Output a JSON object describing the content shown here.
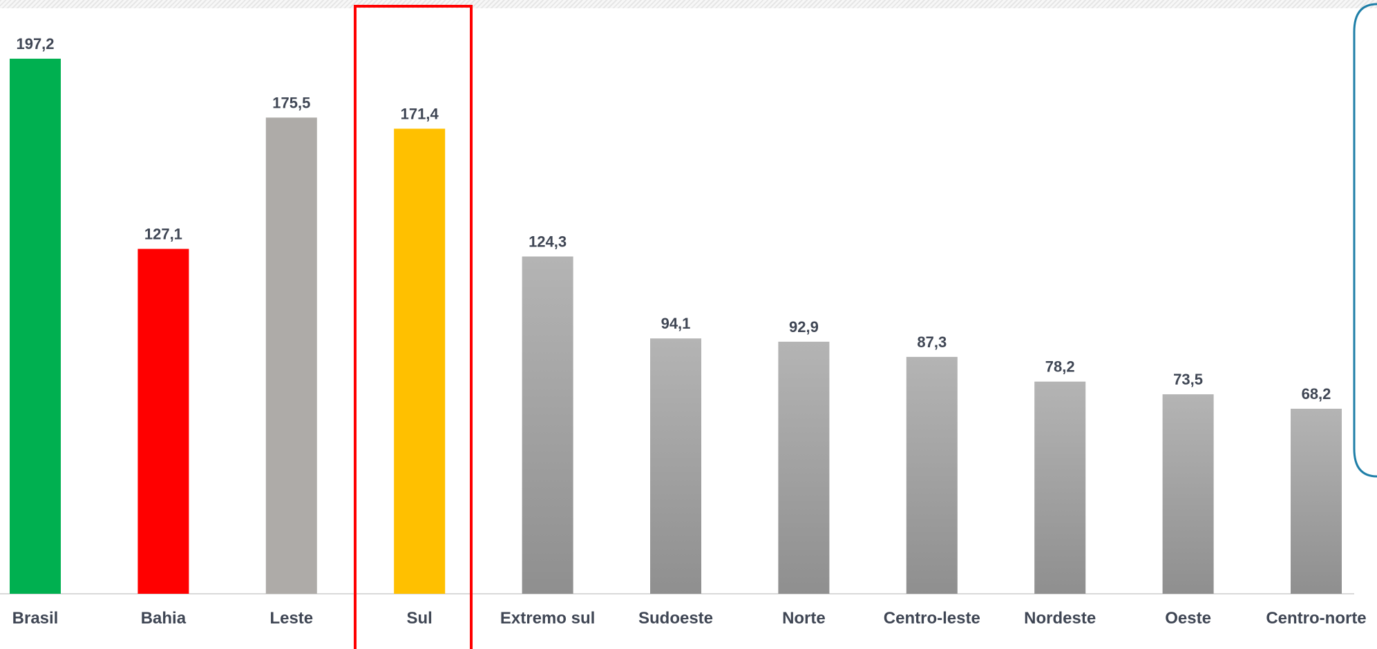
{
  "chart_data": {
    "type": "bar",
    "title": "",
    "xlabel": "",
    "ylabel": "",
    "ylim": [
      0,
      200
    ],
    "grid": false,
    "legend": "none",
    "categories": [
      "Brasil",
      "Bahia",
      "Leste",
      "Sul",
      "Extremo sul",
      "Sudoeste",
      "Norte",
      "Centro-leste",
      "Nordeste",
      "Oeste",
      "Centro-norte"
    ],
    "values": [
      197.2,
      127.1,
      175.5,
      171.4,
      124.3,
      94.1,
      92.9,
      87.3,
      78.2,
      73.5,
      68.2
    ],
    "value_labels": [
      "197,2",
      "127,1",
      "175,5",
      "171,4",
      "124,3",
      "94,1",
      "92,9",
      "87,3",
      "78,2",
      "73,5",
      "68,2"
    ],
    "bar_colors": [
      "#00b050",
      "#ff0000",
      "#aeaba8",
      "#ffc000",
      "gradient-gray",
      "gradient-gray",
      "gradient-gray",
      "gradient-gray",
      "gradient-gray",
      "gradient-gray",
      "gradient-gray"
    ],
    "highlighted_category": "Sul",
    "highlight_color": "#ff0000",
    "callout_border_color": "#1f7fa8"
  }
}
